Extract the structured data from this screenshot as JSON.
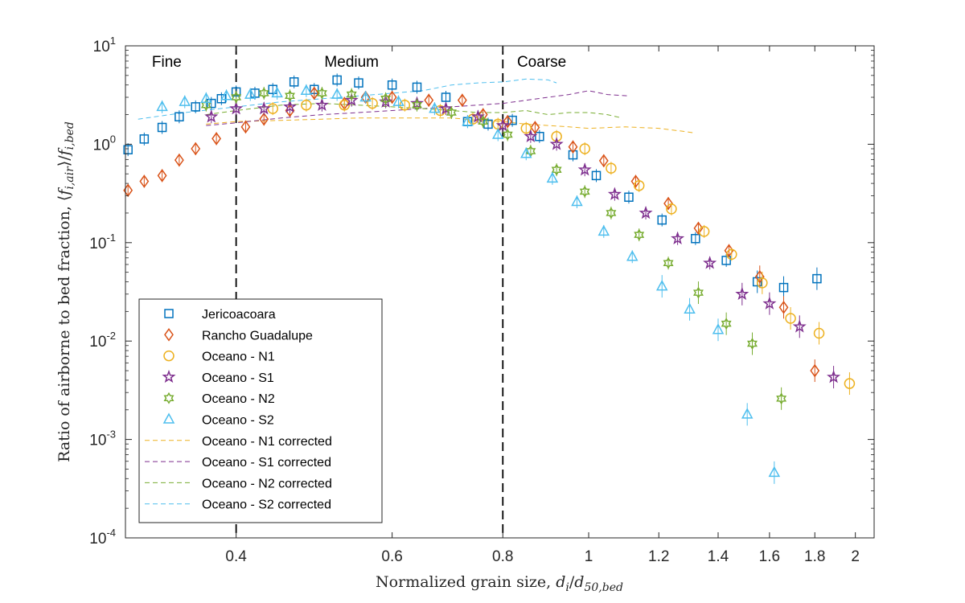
{
  "chart_data": {
    "type": "scatter",
    "title": "",
    "xlabel": "Normalized grain size, d_i/d_50,bed",
    "ylabel": "Ratio of airborne to bed fraction, ⟨f_i,air⟩/f_i,bed",
    "x_scale": "log",
    "y_scale": "log",
    "xlim": [
      0.3,
      2.1
    ],
    "ylim": [
      0.0001,
      10
    ],
    "x_ticks": [
      0.4,
      0.6,
      0.8,
      1,
      1.2,
      1.4,
      1.6,
      1.8,
      2
    ],
    "x_tick_labels": [
      "0.4",
      "0.6",
      "0.8",
      "1",
      "1.2",
      "1.4",
      "1.6",
      "1.8",
      "2"
    ],
    "y_tick_labels": [
      {
        "mantissa": "10",
        "exp": "-4",
        "value": 0.0001
      },
      {
        "mantissa": "10",
        "exp": "-3",
        "value": 0.001
      },
      {
        "mantissa": "10",
        "exp": "-2",
        "value": 0.01
      },
      {
        "mantissa": "10",
        "exp": "-1",
        "value": 0.1
      },
      {
        "mantissa": "10",
        "exp": "0",
        "value": 1
      },
      {
        "mantissa": "10",
        "exp": "1",
        "value": 10
      }
    ],
    "grid": false,
    "legend_position": "bottom-left",
    "regions": [
      {
        "label": "Fine",
        "x": 0.334
      },
      {
        "label": "Medium",
        "x": 0.54
      },
      {
        "label": "Coarse",
        "x": 0.885
      }
    ],
    "boundaries": [
      0.4,
      0.8
    ],
    "series": [
      {
        "name": "Jericoacoara",
        "marker": "square",
        "color": "#0072BD",
        "points": [
          [
            0.302,
            0.88
          ],
          [
            0.315,
            1.13
          ],
          [
            0.33,
            1.48
          ],
          [
            0.345,
            1.9
          ],
          [
            0.36,
            2.4
          ],
          [
            0.375,
            2.6
          ],
          [
            0.385,
            2.9
          ],
          [
            0.4,
            3.4
          ],
          [
            0.42,
            3.3
          ],
          [
            0.44,
            3.6
          ],
          [
            0.465,
            4.3
          ],
          [
            0.49,
            3.6
          ],
          [
            0.52,
            4.5
          ],
          [
            0.55,
            4.2
          ],
          [
            0.6,
            4.0
          ],
          [
            0.64,
            3.8
          ],
          [
            0.69,
            3.0
          ],
          [
            0.73,
            1.7
          ],
          [
            0.77,
            1.6
          ],
          [
            0.82,
            1.75
          ],
          [
            0.88,
            1.2
          ],
          [
            0.96,
            0.78
          ],
          [
            1.02,
            0.48
          ],
          [
            1.11,
            0.29
          ],
          [
            1.21,
            0.17
          ],
          [
            1.32,
            0.11
          ],
          [
            1.43,
            0.066
          ],
          [
            1.55,
            0.04
          ],
          [
            1.66,
            0.035
          ],
          [
            1.81,
            0.043
          ]
        ]
      },
      {
        "name": "Rancho Guadalupe",
        "marker": "diamond",
        "color": "#D95319",
        "points": [
          [
            0.302,
            0.34
          ],
          [
            0.315,
            0.42
          ],
          [
            0.33,
            0.48
          ],
          [
            0.345,
            0.69
          ],
          [
            0.36,
            0.9
          ],
          [
            0.38,
            1.14
          ],
          [
            0.41,
            1.5
          ],
          [
            0.43,
            1.8
          ],
          [
            0.46,
            2.2
          ],
          [
            0.49,
            3.3
          ],
          [
            0.53,
            2.6
          ],
          [
            0.56,
            3.0
          ],
          [
            0.6,
            3.0
          ],
          [
            0.66,
            2.8
          ],
          [
            0.72,
            2.8
          ],
          [
            0.76,
            2.0
          ],
          [
            0.81,
            1.7
          ],
          [
            0.87,
            1.48
          ],
          [
            0.96,
            0.94
          ],
          [
            1.04,
            0.68
          ],
          [
            1.13,
            0.42
          ],
          [
            1.23,
            0.25
          ],
          [
            1.33,
            0.14
          ],
          [
            1.44,
            0.083
          ],
          [
            1.56,
            0.045
          ],
          [
            1.66,
            0.022
          ],
          [
            1.8,
            0.005
          ]
        ]
      },
      {
        "name": "Oceano - N1",
        "marker": "circle",
        "color": "#EDB120",
        "points": [
          [
            0.44,
            2.3
          ],
          [
            0.48,
            2.5
          ],
          [
            0.53,
            2.5
          ],
          [
            0.57,
            2.6
          ],
          [
            0.62,
            2.5
          ],
          [
            0.68,
            2.2
          ],
          [
            0.74,
            1.8
          ],
          [
            0.79,
            1.6
          ],
          [
            0.85,
            1.45
          ],
          [
            0.92,
            1.2
          ],
          [
            0.99,
            0.9
          ],
          [
            1.06,
            0.57
          ],
          [
            1.14,
            0.38
          ],
          [
            1.24,
            0.22
          ],
          [
            1.35,
            0.13
          ],
          [
            1.45,
            0.076
          ],
          [
            1.57,
            0.039
          ],
          [
            1.69,
            0.017
          ],
          [
            1.82,
            0.012
          ],
          [
            1.97,
            0.0037
          ]
        ]
      },
      {
        "name": "Oceano - S1",
        "marker": "star",
        "color": "#7E2F8E",
        "points": [
          [
            0.375,
            1.9
          ],
          [
            0.4,
            2.3
          ],
          [
            0.43,
            2.3
          ],
          [
            0.46,
            2.4
          ],
          [
            0.5,
            2.5
          ],
          [
            0.54,
            2.8
          ],
          [
            0.59,
            2.7
          ],
          [
            0.64,
            2.6
          ],
          [
            0.69,
            2.3
          ],
          [
            0.75,
            1.9
          ],
          [
            0.8,
            1.55
          ],
          [
            0.86,
            1.2
          ],
          [
            0.92,
            1.0
          ],
          [
            0.99,
            0.55
          ],
          [
            1.07,
            0.31
          ],
          [
            1.16,
            0.2
          ],
          [
            1.26,
            0.11
          ],
          [
            1.37,
            0.062
          ],
          [
            1.49,
            0.03
          ],
          [
            1.6,
            0.024
          ],
          [
            1.73,
            0.014
          ],
          [
            1.89,
            0.0043
          ]
        ]
      },
      {
        "name": "Oceano - N2",
        "marker": "hexagram",
        "color": "#77AC30",
        "points": [
          [
            0.37,
            2.5
          ],
          [
            0.4,
            3.0
          ],
          [
            0.43,
            3.3
          ],
          [
            0.46,
            3.1
          ],
          [
            0.5,
            3.3
          ],
          [
            0.54,
            3.2
          ],
          [
            0.59,
            2.9
          ],
          [
            0.64,
            2.5
          ],
          [
            0.7,
            2.1
          ],
          [
            0.76,
            1.7
          ],
          [
            0.81,
            1.25
          ],
          [
            0.86,
            0.85
          ],
          [
            0.92,
            0.55
          ],
          [
            0.99,
            0.33
          ],
          [
            1.06,
            0.2
          ],
          [
            1.14,
            0.12
          ],
          [
            1.23,
            0.062
          ],
          [
            1.33,
            0.031
          ],
          [
            1.43,
            0.015
          ],
          [
            1.53,
            0.0094
          ],
          [
            1.65,
            0.0026
          ]
        ]
      },
      {
        "name": "Oceano - S2",
        "marker": "triangle",
        "color": "#4DBEEE",
        "points": [
          [
            0.33,
            2.4
          ],
          [
            0.35,
            2.7
          ],
          [
            0.37,
            2.9
          ],
          [
            0.39,
            3.1
          ],
          [
            0.415,
            3.2
          ],
          [
            0.445,
            3.3
          ],
          [
            0.48,
            3.5
          ],
          [
            0.52,
            3.2
          ],
          [
            0.56,
            3.0
          ],
          [
            0.61,
            2.7
          ],
          [
            0.67,
            2.3
          ],
          [
            0.73,
            1.7
          ],
          [
            0.79,
            1.25
          ],
          [
            0.85,
            0.8
          ],
          [
            0.91,
            0.45
          ],
          [
            0.97,
            0.26
          ],
          [
            1.04,
            0.13
          ],
          [
            1.12,
            0.072
          ],
          [
            1.21,
            0.036
          ],
          [
            1.3,
            0.021
          ],
          [
            1.4,
            0.013
          ],
          [
            1.51,
            0.0018
          ],
          [
            1.62,
            0.00046
          ]
        ]
      }
    ],
    "corrected_series": [
      {
        "name": "Oceano - N1 corrected",
        "color": "#EDB120",
        "points": [
          [
            0.37,
            1.6
          ],
          [
            0.4,
            1.7
          ],
          [
            0.45,
            1.75
          ],
          [
            0.5,
            1.8
          ],
          [
            0.55,
            1.85
          ],
          [
            0.6,
            1.85
          ],
          [
            0.65,
            1.85
          ],
          [
            0.7,
            1.85
          ],
          [
            0.75,
            1.75
          ],
          [
            0.8,
            1.7
          ],
          [
            0.85,
            1.6
          ],
          [
            0.9,
            1.55
          ],
          [
            0.95,
            1.5
          ],
          [
            1.0,
            1.45
          ],
          [
            1.1,
            1.5
          ],
          [
            1.2,
            1.45
          ],
          [
            1.28,
            1.35
          ],
          [
            1.32,
            1.3
          ]
        ]
      },
      {
        "name": "Oceano - S1 corrected",
        "color": "#7E2F8E",
        "points": [
          [
            0.37,
            1.55
          ],
          [
            0.4,
            1.65
          ],
          [
            0.45,
            1.85
          ],
          [
            0.5,
            2.0
          ],
          [
            0.55,
            2.1
          ],
          [
            0.6,
            2.2
          ],
          [
            0.65,
            2.3
          ],
          [
            0.7,
            2.4
          ],
          [
            0.75,
            2.5
          ],
          [
            0.8,
            2.6
          ],
          [
            0.85,
            2.8
          ],
          [
            0.9,
            3.0
          ],
          [
            0.95,
            3.2
          ],
          [
            1.0,
            3.5
          ],
          [
            1.05,
            3.2
          ],
          [
            1.11,
            3.1
          ]
        ]
      },
      {
        "name": "Oceano - N2 corrected",
        "color": "#77AC30",
        "points": [
          [
            0.37,
            2.0
          ],
          [
            0.4,
            2.2
          ],
          [
            0.45,
            2.5
          ],
          [
            0.5,
            2.6
          ],
          [
            0.55,
            2.5
          ],
          [
            0.6,
            2.4
          ],
          [
            0.65,
            2.3
          ],
          [
            0.7,
            2.2
          ],
          [
            0.75,
            2.1
          ],
          [
            0.8,
            2.1
          ],
          [
            0.85,
            2.2
          ],
          [
            0.9,
            2.0
          ],
          [
            0.95,
            2.1
          ],
          [
            1.0,
            2.1
          ],
          [
            1.05,
            2.0
          ],
          [
            1.09,
            1.85
          ]
        ]
      },
      {
        "name": "Oceano - S2 corrected",
        "color": "#4DBEEE",
        "points": [
          [
            0.31,
            1.8
          ],
          [
            0.35,
            2.1
          ],
          [
            0.4,
            2.4
          ],
          [
            0.45,
            2.7
          ],
          [
            0.5,
            2.9
          ],
          [
            0.55,
            3.1
          ],
          [
            0.6,
            3.3
          ],
          [
            0.65,
            3.5
          ],
          [
            0.7,
            4.0
          ],
          [
            0.75,
            4.2
          ],
          [
            0.8,
            4.3
          ],
          [
            0.85,
            4.6
          ],
          [
            0.9,
            4.5
          ],
          [
            0.92,
            4.2
          ]
        ]
      }
    ]
  }
}
